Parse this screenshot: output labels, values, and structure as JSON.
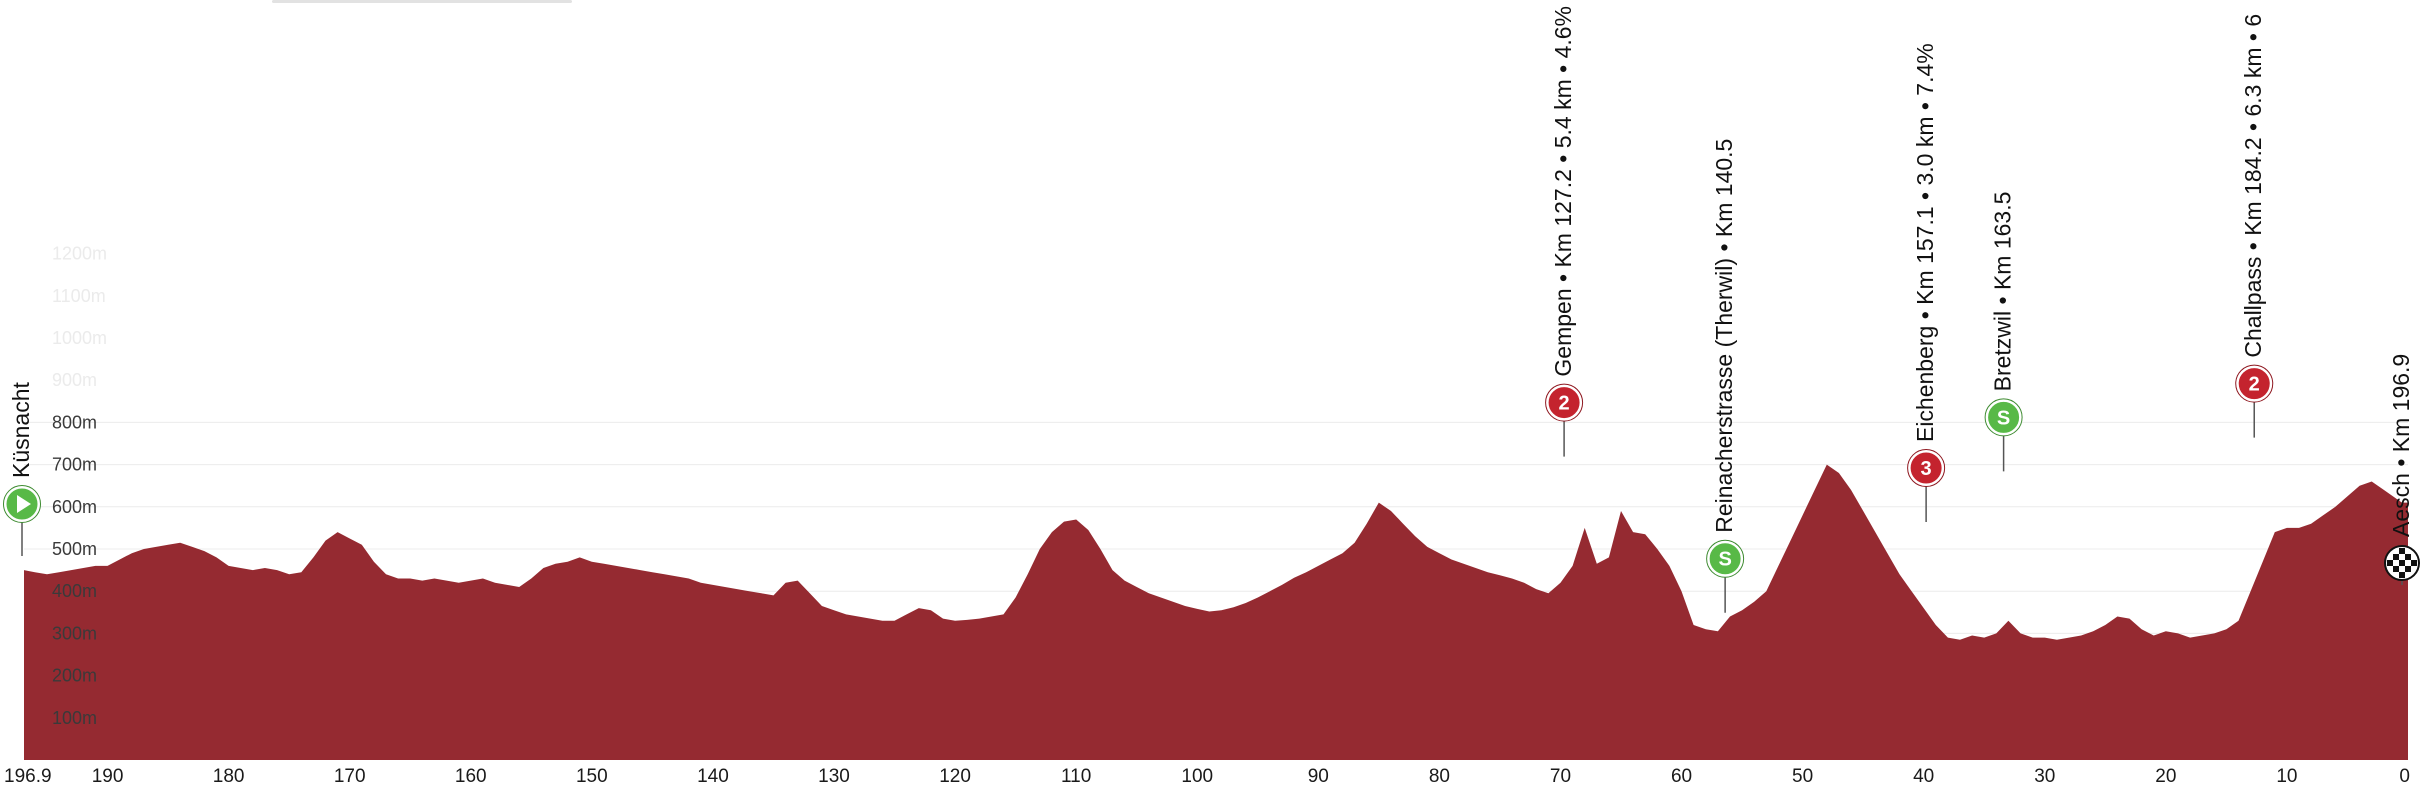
{
  "chart_data": {
    "type": "area",
    "x_reversed": true,
    "xlim": [
      196.9,
      0
    ],
    "ylim": [
      0,
      1250
    ],
    "grid": true,
    "colors": {
      "fill": "#952a31",
      "grid": "#ececec",
      "ytick": "#3a3a3a",
      "ytick_faint": "#ebebeb",
      "cat2": "#c4232e",
      "sprint": "#58b947",
      "start": "#58b947",
      "finish": "#111111",
      "leader": "#555555"
    },
    "y_ticks": [
      {
        "value": 100,
        "label": "100m",
        "faint": false
      },
      {
        "value": 200,
        "label": "200m",
        "faint": false
      },
      {
        "value": 300,
        "label": "300m",
        "faint": false
      },
      {
        "value": 400,
        "label": "400m",
        "faint": false
      },
      {
        "value": 500,
        "label": "500m",
        "faint": false
      },
      {
        "value": 600,
        "label": "600m",
        "faint": false
      },
      {
        "value": 700,
        "label": "700m",
        "faint": false
      },
      {
        "value": 800,
        "label": "800m",
        "faint": false
      },
      {
        "value": 900,
        "label": "900m",
        "faint": true
      },
      {
        "value": 1000,
        "label": "1000m",
        "faint": true
      },
      {
        "value": 1100,
        "label": "1100m",
        "faint": true
      },
      {
        "value": 1200,
        "label": "1200m",
        "faint": true
      }
    ],
    "x_ticks": [
      {
        "value": 196.9,
        "label": "196.9"
      },
      {
        "value": 190,
        "label": "190"
      },
      {
        "value": 180,
        "label": "180"
      },
      {
        "value": 170,
        "label": "170"
      },
      {
        "value": 160,
        "label": "160"
      },
      {
        "value": 150,
        "label": "150"
      },
      {
        "value": 140,
        "label": "140"
      },
      {
        "value": 130,
        "label": "130"
      },
      {
        "value": 120,
        "label": "120"
      },
      {
        "value": 110,
        "label": "110"
      },
      {
        "value": 100,
        "label": "100"
      },
      {
        "value": 90,
        "label": "90"
      },
      {
        "value": 80,
        "label": "80"
      },
      {
        "value": 70,
        "label": "70"
      },
      {
        "value": 60,
        "label": "60"
      },
      {
        "value": 50,
        "label": "50"
      },
      {
        "value": 40,
        "label": "40"
      },
      {
        "value": 30,
        "label": "30"
      },
      {
        "value": 20,
        "label": "20"
      },
      {
        "value": 10,
        "label": "10"
      },
      {
        "value": 0,
        "label": "0"
      }
    ],
    "profile": [
      [
        196.9,
        450
      ],
      [
        196,
        445
      ],
      [
        195,
        440
      ],
      [
        194,
        445
      ],
      [
        193,
        450
      ],
      [
        192,
        455
      ],
      [
        191,
        460
      ],
      [
        190,
        460
      ],
      [
        189,
        475
      ],
      [
        188,
        490
      ],
      [
        187,
        500
      ],
      [
        186,
        505
      ],
      [
        185,
        510
      ],
      [
        184,
        515
      ],
      [
        183,
        505
      ],
      [
        182,
        495
      ],
      [
        181,
        480
      ],
      [
        180,
        460
      ],
      [
        179,
        455
      ],
      [
        178,
        450
      ],
      [
        177,
        455
      ],
      [
        176,
        450
      ],
      [
        175,
        440
      ],
      [
        174,
        445
      ],
      [
        173,
        480
      ],
      [
        172,
        520
      ],
      [
        171,
        540
      ],
      [
        170,
        525
      ],
      [
        169,
        510
      ],
      [
        168,
        470
      ],
      [
        167,
        440
      ],
      [
        166,
        430
      ],
      [
        165,
        430
      ],
      [
        164,
        425
      ],
      [
        163,
        430
      ],
      [
        162,
        425
      ],
      [
        161,
        420
      ],
      [
        160,
        425
      ],
      [
        159,
        430
      ],
      [
        158,
        420
      ],
      [
        157,
        415
      ],
      [
        156,
        410
      ],
      [
        155,
        430
      ],
      [
        154,
        455
      ],
      [
        153,
        465
      ],
      [
        152,
        470
      ],
      [
        151,
        480
      ],
      [
        150,
        470
      ],
      [
        149,
        465
      ],
      [
        148,
        460
      ],
      [
        147,
        455
      ],
      [
        146,
        450
      ],
      [
        145,
        445
      ],
      [
        144,
        440
      ],
      [
        143,
        435
      ],
      [
        142,
        430
      ],
      [
        141,
        420
      ],
      [
        140,
        415
      ],
      [
        139,
        410
      ],
      [
        138,
        405
      ],
      [
        137,
        400
      ],
      [
        136,
        395
      ],
      [
        135,
        390
      ],
      [
        134,
        420
      ],
      [
        133,
        425
      ],
      [
        132,
        395
      ],
      [
        131,
        365
      ],
      [
        130,
        355
      ],
      [
        129,
        345
      ],
      [
        128,
        340
      ],
      [
        127,
        335
      ],
      [
        126,
        330
      ],
      [
        125,
        330
      ],
      [
        124,
        345
      ],
      [
        123,
        360
      ],
      [
        122,
        355
      ],
      [
        121,
        335
      ],
      [
        120,
        330
      ],
      [
        119,
        332
      ],
      [
        118,
        335
      ],
      [
        117,
        340
      ],
      [
        116,
        345
      ],
      [
        115,
        385
      ],
      [
        114,
        440
      ],
      [
        113,
        500
      ],
      [
        112,
        540
      ],
      [
        111,
        565
      ],
      [
        110,
        570
      ],
      [
        109,
        545
      ],
      [
        108,
        500
      ],
      [
        107,
        450
      ],
      [
        106,
        425
      ],
      [
        105,
        410
      ],
      [
        104,
        395
      ],
      [
        103,
        385
      ],
      [
        102,
        375
      ],
      [
        101,
        365
      ],
      [
        100,
        358
      ],
      [
        99,
        352
      ],
      [
        98,
        355
      ],
      [
        97,
        362
      ],
      [
        96,
        372
      ],
      [
        95,
        385
      ],
      [
        94,
        400
      ],
      [
        93,
        415
      ],
      [
        92,
        432
      ],
      [
        91,
        445
      ],
      [
        90,
        460
      ],
      [
        89,
        475
      ],
      [
        88,
        490
      ],
      [
        87,
        515
      ],
      [
        86,
        560
      ],
      [
        85,
        610
      ],
      [
        84,
        590
      ],
      [
        83,
        560
      ],
      [
        82,
        530
      ],
      [
        81,
        505
      ],
      [
        80,
        490
      ],
      [
        79,
        475
      ],
      [
        78,
        465
      ],
      [
        77,
        455
      ],
      [
        76,
        445
      ],
      [
        75,
        438
      ],
      [
        74,
        430
      ],
      [
        73,
        420
      ],
      [
        72,
        405
      ],
      [
        71,
        395
      ],
      [
        70,
        420
      ],
      [
        69,
        460
      ],
      [
        68,
        550
      ],
      [
        67,
        465
      ],
      [
        66,
        480
      ],
      [
        65,
        590
      ],
      [
        64,
        540
      ],
      [
        63,
        535
      ],
      [
        62,
        500
      ],
      [
        61,
        460
      ],
      [
        60,
        400
      ],
      [
        59,
        320
      ],
      [
        58,
        310
      ],
      [
        57,
        305
      ],
      [
        56,
        340
      ],
      [
        55,
        355
      ],
      [
        54,
        375
      ],
      [
        53,
        400
      ],
      [
        52,
        460
      ],
      [
        51,
        520
      ],
      [
        50,
        580
      ],
      [
        49,
        640
      ],
      [
        48,
        700
      ],
      [
        47,
        680
      ],
      [
        46,
        640
      ],
      [
        45,
        590
      ],
      [
        44,
        540
      ],
      [
        43,
        490
      ],
      [
        42,
        440
      ],
      [
        41,
        400
      ],
      [
        40,
        360
      ],
      [
        39,
        320
      ],
      [
        38,
        290
      ],
      [
        37,
        285
      ],
      [
        36,
        295
      ],
      [
        35,
        290
      ],
      [
        34,
        300
      ],
      [
        33,
        330
      ],
      [
        32,
        300
      ],
      [
        31,
        290
      ],
      [
        30,
        290
      ],
      [
        29,
        285
      ],
      [
        28,
        290
      ],
      [
        27,
        295
      ],
      [
        26,
        305
      ],
      [
        25,
        320
      ],
      [
        24,
        340
      ],
      [
        23,
        335
      ],
      [
        22,
        310
      ],
      [
        21,
        295
      ],
      [
        20,
        305
      ],
      [
        19,
        300
      ],
      [
        18,
        290
      ],
      [
        17,
        295
      ],
      [
        16,
        300
      ],
      [
        15,
        310
      ],
      [
        14,
        330
      ],
      [
        13,
        400
      ],
      [
        12,
        470
      ],
      [
        11,
        540
      ],
      [
        10,
        550
      ],
      [
        9,
        550
      ],
      [
        8,
        560
      ],
      [
        7,
        580
      ],
      [
        6,
        600
      ],
      [
        5,
        625
      ],
      [
        4,
        650
      ],
      [
        3,
        660
      ],
      [
        2,
        640
      ],
      [
        1,
        620
      ],
      [
        0.5,
        610
      ]
    ],
    "climbs": [
      {
        "km": 127.2,
        "elev": 700,
        "label": "Gempen • Km 127.2 • 5.4 km • 4.6%",
        "badge": "2",
        "kind": "cat2"
      },
      {
        "km": 140.5,
        "elev": 330,
        "label": "Reinacherstrasse (Therwil) • Km 140.5",
        "badge": "S",
        "kind": "sprint"
      },
      {
        "km": 157.1,
        "elev": 545,
        "label": "Eichenberg • Km 157.1 • 3.0 km • 7.4%",
        "badge": "3",
        "kind": "cat2"
      },
      {
        "km": 163.5,
        "elev": 665,
        "label": "Bretzwil • Km 163.5",
        "badge": "S",
        "kind": "sprint"
      },
      {
        "km": 184.2,
        "elev": 745,
        "label": "Challpass • Km 184.2 • 6.3 km • 6",
        "badge": "2",
        "kind": "cat2"
      },
      {
        "km": 0,
        "elev": 452,
        "label": "Küsnacht",
        "badge": "▶",
        "kind": "start"
      },
      {
        "km": 196.9,
        "elev": 312,
        "label": "Aesch • Km 196.9",
        "badge": "",
        "kind": "finish"
      }
    ]
  }
}
